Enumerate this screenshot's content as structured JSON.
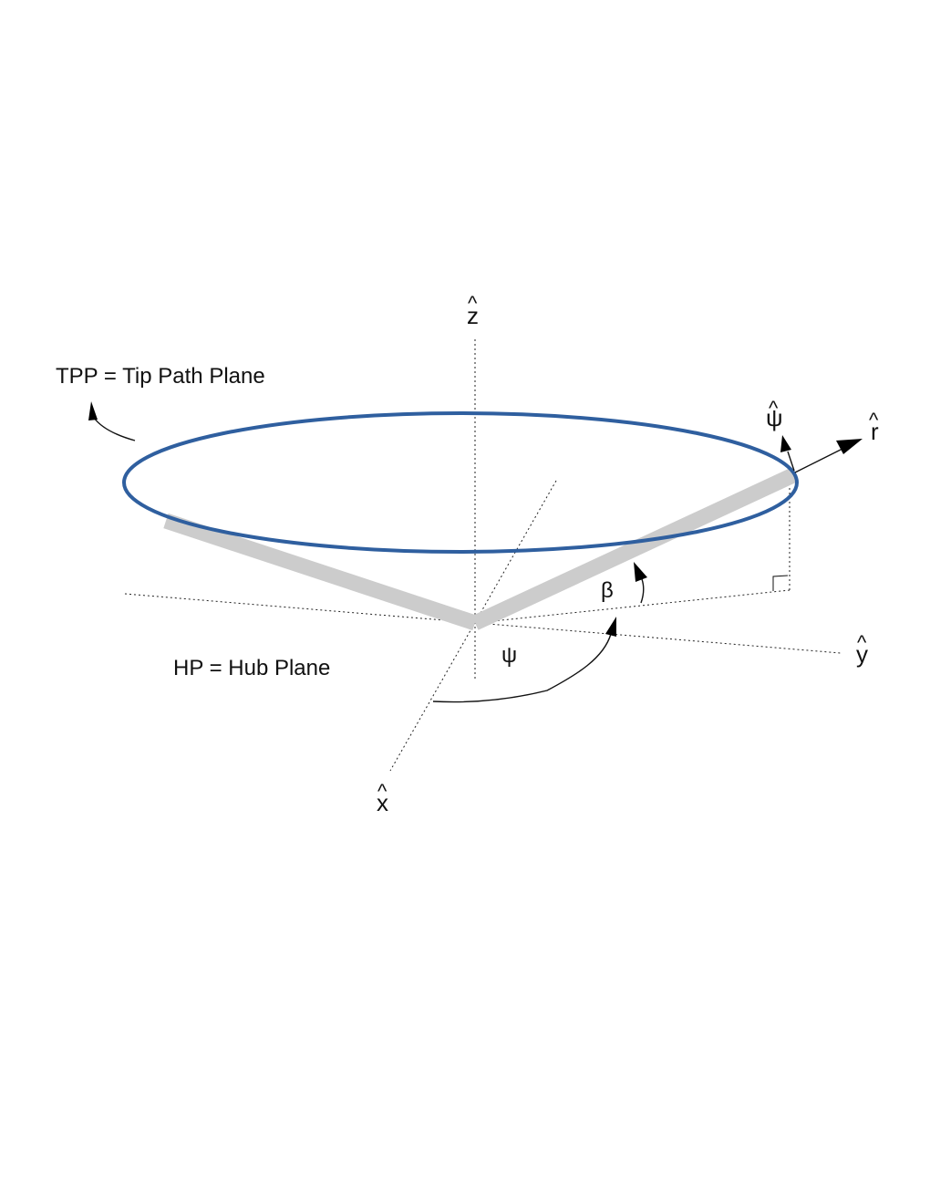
{
  "labels": {
    "tpp": "TPP = Tip Path Plane",
    "hp": "HP = Hub Plane",
    "axis_z": "z",
    "axis_y": "y",
    "axis_x": "x",
    "axis_r": "r",
    "axis_psi": "ψ",
    "hat": "^",
    "angle_beta": "β",
    "angle_psi": "ψ"
  },
  "colors": {
    "tip_path": "#2f5f9f",
    "blade": "#cccccc",
    "lines": "#111111"
  }
}
